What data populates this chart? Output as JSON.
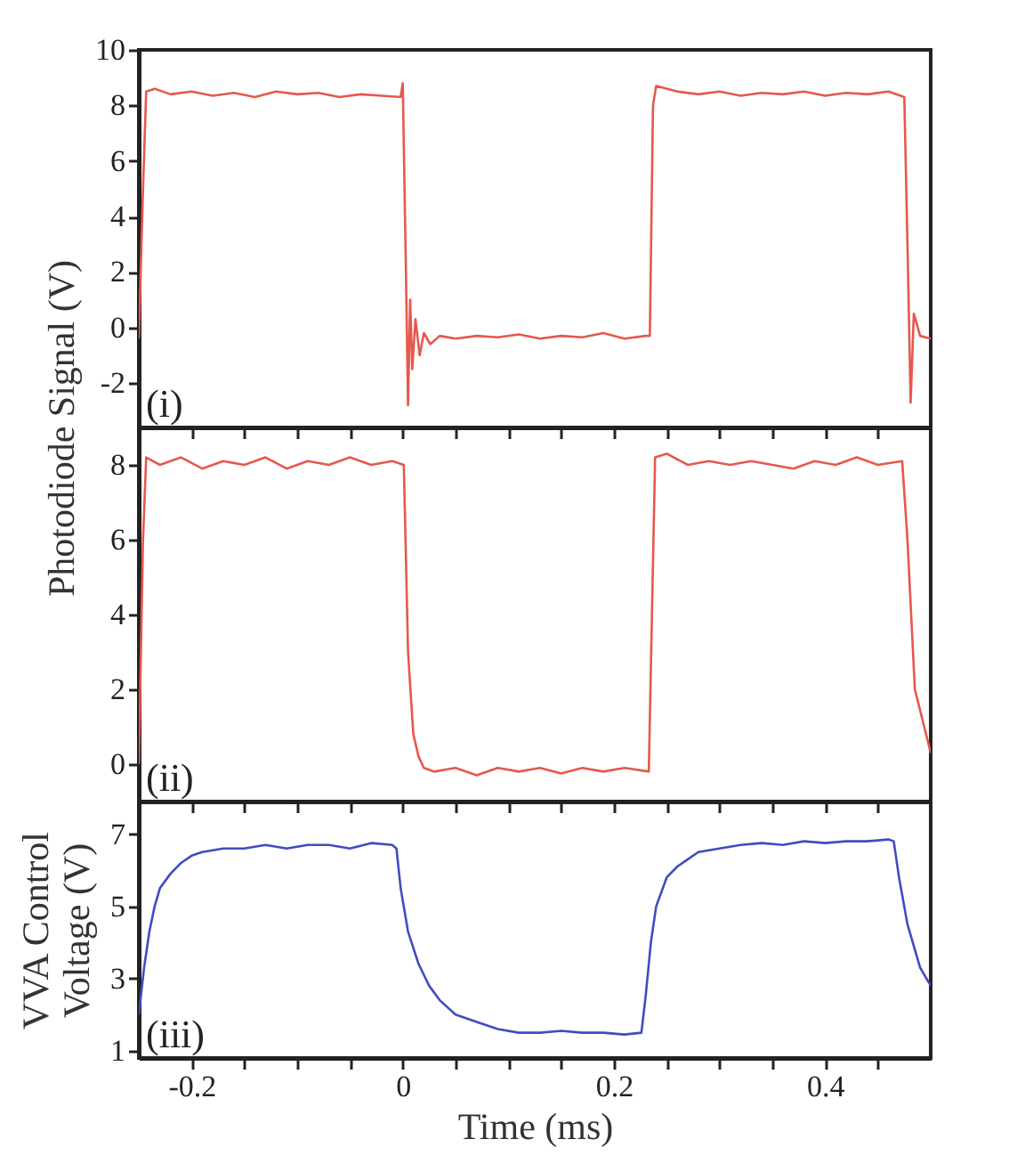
{
  "chart_data": [
    {
      "type": "line",
      "ylabel": "Photodiode Signal (V)",
      "annotations": [
        "(i)"
      ],
      "xlim": [
        -0.25,
        0.5
      ],
      "ylim": [
        -3.6,
        10
      ],
      "yticks": [
        -2,
        0,
        2,
        4,
        6,
        8,
        10
      ],
      "xticks": [
        {
          "value": -0.2,
          "label": null
        },
        {
          "value": -0.15,
          "label": null
        },
        {
          "value": -0.1,
          "label": null
        },
        {
          "value": -0.05,
          "label": null
        },
        {
          "value": 0,
          "label": null
        },
        {
          "value": 0.05,
          "label": null
        },
        {
          "value": 0.1,
          "label": null
        },
        {
          "value": 0.15,
          "label": null
        },
        {
          "value": 0.2,
          "label": null
        },
        {
          "value": 0.25,
          "label": null
        },
        {
          "value": 0.3,
          "label": null
        },
        {
          "value": 0.35,
          "label": null
        },
        {
          "value": 0.4,
          "label": null
        },
        {
          "value": 0.45,
          "label": null
        }
      ],
      "tick_labels": "y",
      "grid": false,
      "series": [
        {
          "color": "#e5584e",
          "x": [
            -0.25,
            -0.246,
            -0.243,
            -0.235,
            -0.22,
            -0.2,
            -0.18,
            -0.16,
            -0.14,
            -0.12,
            -0.1,
            -0.08,
            -0.06,
            -0.04,
            -0.02,
            -0.002,
            0.0,
            0.003,
            0.005,
            0.007,
            0.009,
            0.012,
            0.016,
            0.02,
            0.026,
            0.035,
            0.05,
            0.07,
            0.09,
            0.11,
            0.13,
            0.15,
            0.17,
            0.19,
            0.21,
            0.23,
            0.234,
            0.237,
            0.24,
            0.26,
            0.28,
            0.3,
            0.32,
            0.34,
            0.36,
            0.38,
            0.4,
            0.42,
            0.44,
            0.46,
            0.475,
            0.478,
            0.481,
            0.484,
            0.49,
            0.5
          ],
          "values": [
            -0.4,
            5,
            8.5,
            8.6,
            8.4,
            8.5,
            8.35,
            8.45,
            8.3,
            8.5,
            8.4,
            8.45,
            8.3,
            8.4,
            8.35,
            8.3,
            8.8,
            2,
            -2.8,
            1.0,
            -1.5,
            0.3,
            -1.0,
            -0.2,
            -0.6,
            -0.3,
            -0.4,
            -0.3,
            -0.35,
            -0.25,
            -0.4,
            -0.3,
            -0.35,
            -0.2,
            -0.4,
            -0.3,
            -0.3,
            8.0,
            8.7,
            8.5,
            8.4,
            8.5,
            8.35,
            8.45,
            8.4,
            8.5,
            8.35,
            8.45,
            8.4,
            8.5,
            8.3,
            3,
            -2.7,
            0.5,
            -0.3,
            -0.4
          ]
        }
      ]
    },
    {
      "type": "line",
      "annotations": [
        "(ii)"
      ],
      "xlim": [
        -0.25,
        0.5
      ],
      "ylim": [
        -1,
        9
      ],
      "yticks": [
        0,
        2,
        4,
        6,
        8
      ],
      "xticks": [
        {
          "value": -0.2,
          "label": null
        },
        {
          "value": -0.15,
          "label": null
        },
        {
          "value": -0.1,
          "label": null
        },
        {
          "value": -0.05,
          "label": null
        },
        {
          "value": 0,
          "label": null
        },
        {
          "value": 0.05,
          "label": null
        },
        {
          "value": 0.1,
          "label": null
        },
        {
          "value": 0.15,
          "label": null
        },
        {
          "value": 0.2,
          "label": null
        },
        {
          "value": 0.25,
          "label": null
        },
        {
          "value": 0.3,
          "label": null
        },
        {
          "value": 0.35,
          "label": null
        },
        {
          "value": 0.4,
          "label": null
        },
        {
          "value": 0.45,
          "label": null
        }
      ],
      "tick_labels": "y",
      "grid": false,
      "series": [
        {
          "color": "#e5584e",
          "x": [
            -0.25,
            -0.246,
            -0.243,
            -0.23,
            -0.21,
            -0.19,
            -0.17,
            -0.15,
            -0.13,
            -0.11,
            -0.09,
            -0.07,
            -0.05,
            -0.03,
            -0.01,
            0.001,
            0.005,
            0.01,
            0.015,
            0.02,
            0.03,
            0.05,
            0.07,
            0.09,
            0.11,
            0.13,
            0.15,
            0.17,
            0.19,
            0.21,
            0.233,
            0.236,
            0.239,
            0.25,
            0.27,
            0.29,
            0.31,
            0.33,
            0.35,
            0.37,
            0.39,
            0.41,
            0.43,
            0.45,
            0.473,
            0.478,
            0.485,
            0.5
          ],
          "values": [
            0,
            6,
            8.2,
            8.0,
            8.2,
            7.9,
            8.1,
            8.0,
            8.2,
            7.9,
            8.1,
            8.0,
            8.2,
            8.0,
            8.1,
            8.0,
            3,
            0.8,
            0.2,
            -0.1,
            -0.2,
            -0.1,
            -0.3,
            -0.1,
            -0.2,
            -0.1,
            -0.25,
            -0.1,
            -0.2,
            -0.1,
            -0.2,
            4,
            8.2,
            8.3,
            8.0,
            8.1,
            8.0,
            8.1,
            8.0,
            7.9,
            8.1,
            8.0,
            8.2,
            8.0,
            8.1,
            6,
            2,
            0.3
          ]
        }
      ]
    },
    {
      "type": "line",
      "ylabel": "VVA Control Voltage (V)",
      "xlabel": "Time (ms)",
      "annotations": [
        "(iii)"
      ],
      "xlim": [
        -0.25,
        0.5
      ],
      "ylim": [
        0.8,
        7.9
      ],
      "yticks": [
        1,
        3,
        5,
        7
      ],
      "xticks": [
        -0.2,
        {
          "value": -0.15,
          "label": null
        },
        {
          "value": -0.1,
          "label": null
        },
        {
          "value": -0.05,
          "label": null
        },
        0,
        {
          "value": 0.05,
          "label": null
        },
        {
          "value": 0.1,
          "label": null
        },
        {
          "value": 0.15,
          "label": null
        },
        0.2,
        {
          "value": 0.25,
          "label": null
        },
        {
          "value": 0.3,
          "label": null
        },
        {
          "value": 0.35,
          "label": null
        },
        0.4,
        {
          "value": 0.45,
          "label": null
        }
      ],
      "grid": false,
      "series": [
        {
          "color": "#3f4cc0",
          "x": [
            -0.25,
            -0.245,
            -0.24,
            -0.235,
            -0.23,
            -0.22,
            -0.21,
            -0.2,
            -0.19,
            -0.17,
            -0.15,
            -0.13,
            -0.11,
            -0.09,
            -0.07,
            -0.05,
            -0.03,
            -0.01,
            -0.006,
            -0.002,
            0.005,
            0.015,
            0.025,
            0.035,
            0.05,
            0.07,
            0.09,
            0.11,
            0.13,
            0.15,
            0.17,
            0.19,
            0.21,
            0.226,
            0.23,
            0.235,
            0.24,
            0.25,
            0.26,
            0.27,
            0.28,
            0.3,
            0.32,
            0.34,
            0.36,
            0.38,
            0.4,
            0.42,
            0.44,
            0.46,
            0.465,
            0.47,
            0.478,
            0.49,
            0.5
          ],
          "values": [
            2.0,
            3.3,
            4.3,
            5.0,
            5.5,
            5.9,
            6.2,
            6.4,
            6.5,
            6.6,
            6.6,
            6.7,
            6.6,
            6.7,
            6.7,
            6.6,
            6.75,
            6.7,
            6.6,
            5.5,
            4.3,
            3.4,
            2.8,
            2.4,
            2.0,
            1.8,
            1.6,
            1.5,
            1.5,
            1.55,
            1.5,
            1.5,
            1.45,
            1.5,
            2.5,
            4.0,
            5.0,
            5.8,
            6.1,
            6.3,
            6.5,
            6.6,
            6.7,
            6.75,
            6.7,
            6.8,
            6.75,
            6.8,
            6.8,
            6.85,
            6.8,
            5.8,
            4.5,
            3.3,
            2.8
          ]
        }
      ]
    }
  ]
}
